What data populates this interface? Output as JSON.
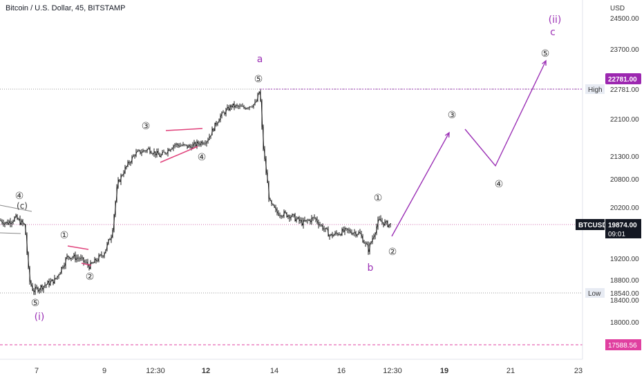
{
  "title": "Bitcoin / U.S. Dollar, 45, BITSTAMP",
  "currency": "USD",
  "colors": {
    "candle": "#1a1a1a",
    "wave": "#9b30b5",
    "trendline": "#e0407a",
    "price_line": "#d070b0",
    "last_price_bg": "#131722",
    "label_bg": "#e7ebf3"
  },
  "chart_data": {
    "type": "candlestick",
    "y_ticks": [
      "24500.00",
      "23700.00",
      "22100.00",
      "21300.00",
      "20800.00",
      "20200.00",
      "19200.00",
      "18800.00",
      "18400.00",
      "18000.00"
    ],
    "x_ticks": [
      "7",
      "9",
      "12:30",
      "12",
      "14",
      "16",
      "12:30",
      "19",
      "21",
      "23"
    ],
    "ylim": [
      17300,
      24850
    ],
    "high": {
      "label": "High",
      "value": "22781.00"
    },
    "low": {
      "label": "Low",
      "value": "18540.00"
    },
    "last_price": {
      "symbol": "BTCUSD",
      "value": "19874.00",
      "countdown": "09:01"
    },
    "dashed_level": "17588.56",
    "wave_labels": {
      "big": [
        "(i)",
        "a",
        "b",
        "(ii)",
        "c"
      ],
      "small": [
        "④",
        "(c)",
        "①",
        "②",
        "③",
        "④",
        "⑤",
        "⑤",
        "①",
        "②",
        "③",
        "④",
        "⑤"
      ]
    },
    "projection": [
      {
        "x": "15 12:00",
        "price": 19600
      },
      {
        "x": "18 15:00",
        "price": 21870
      },
      {
        "x": "19 06:00",
        "price": 21950
      },
      {
        "x": "20 18:00",
        "price": 21200
      },
      {
        "x": "22 06:00",
        "price": 23600
      }
    ]
  }
}
